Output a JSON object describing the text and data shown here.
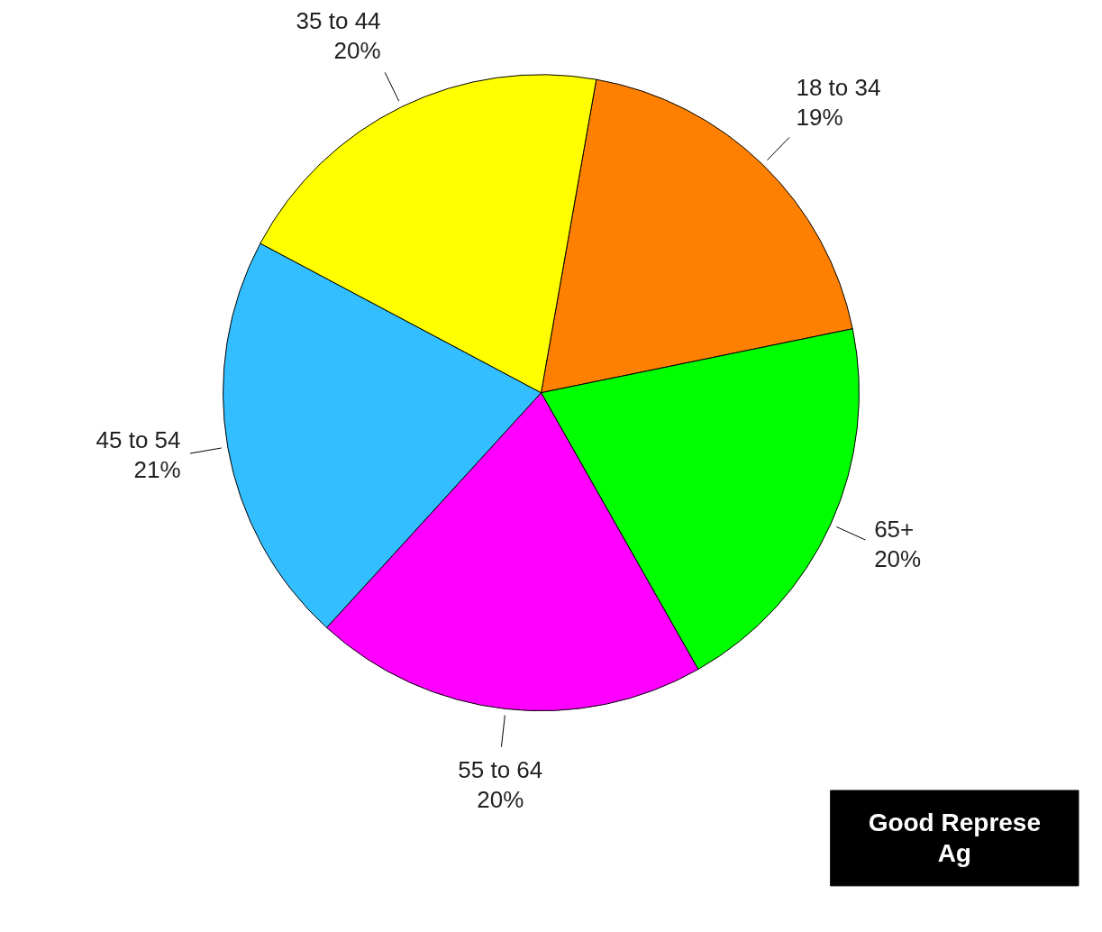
{
  "chart_data": {
    "type": "pie",
    "categories": [
      "18 to 34",
      "65+",
      "55 to 64",
      "45 to 54",
      "35 to 44"
    ],
    "values": [
      19,
      20,
      20,
      21,
      20
    ],
    "colors": [
      "#ff8000",
      "#00ff00",
      "#ff00ff",
      "#33bfff",
      "#ffff00"
    ],
    "value_labels": [
      "19%",
      "20%",
      "20%",
      "21%",
      "20%"
    ],
    "annotations": [
      "Good Represe\nAg"
    ]
  }
}
